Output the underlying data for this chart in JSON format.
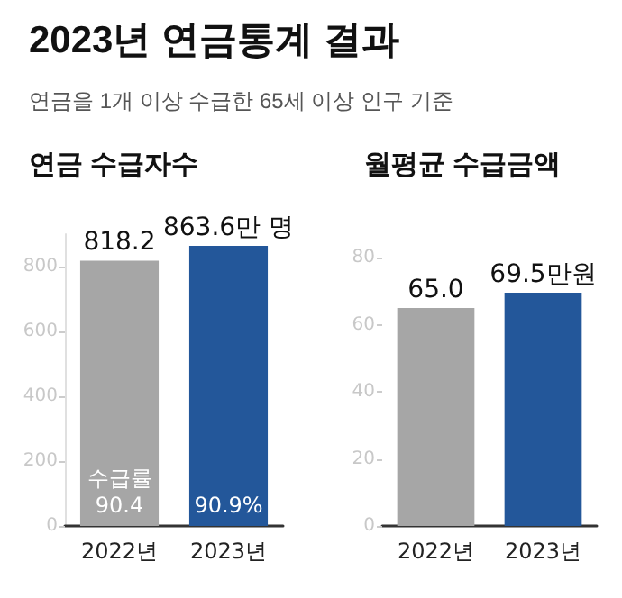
{
  "chart_data": [
    {
      "type": "bar",
      "title": "2023년 연금통계 결과",
      "subtitle": "연금을 1개 이상 수급한 65세 이상 인구 기준",
      "categories": [
        "2022년",
        "2023년"
      ],
      "values": [
        818.2,
        863.6
      ],
      "colors": [
        "#a6a6a6",
        "#23579a"
      ],
      "ylim": [
        0,
        900
      ],
      "yticks": [
        0,
        200,
        400,
        600,
        800
      ],
      "value_labels": [
        "818.2",
        "863.6만 명"
      ],
      "annotations": [
        "연금 수급자수",
        "수급률\n90.4",
        "90.9%"
      ]
    },
    {
      "type": "bar",
      "title": "월평균 수급금액",
      "categories": [
        "2022년",
        "2023년"
      ],
      "values": [
        65.0,
        69.5
      ],
      "colors": [
        "#a6a6a6",
        "#23579a"
      ],
      "ylim": [
        0,
        80
      ],
      "yticks": [
        0,
        20,
        40,
        60,
        80
      ],
      "value_labels": [
        "65.0",
        "69.5만원"
      ]
    }
  ]
}
